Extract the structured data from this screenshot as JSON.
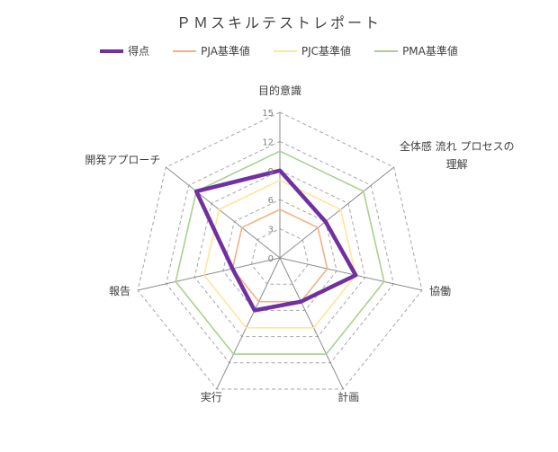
{
  "chart_data": {
    "type": "radar",
    "title": "ＰＭスキルテストレポート",
    "axes": [
      "目的意識",
      "全体感 流れ プロセスの理解",
      "協働",
      "計画",
      "実行",
      "報告",
      "開発アプローチ"
    ],
    "axis_label_lines": [
      [
        "目的意識"
      ],
      [
        "全体感 流れ プロセスの",
        "理解"
      ],
      [
        "協働"
      ],
      [
        "計画"
      ],
      [
        "実行"
      ],
      [
        "報告"
      ],
      [
        "開発アプローチ"
      ]
    ],
    "rmin": 0,
    "rmax": 15,
    "ticks": [
      0,
      3,
      6,
      9,
      12,
      15
    ],
    "grid": true,
    "legend_position": "top",
    "series": [
      {
        "name": "得点",
        "values": [
          9,
          6,
          8,
          5,
          6,
          5,
          11
        ],
        "color": "#7030a0",
        "width": 4.5
      },
      {
        "name": "PJA基準値",
        "values": [
          5,
          5,
          5,
          5,
          5,
          5,
          5
        ],
        "color": "#f4b183",
        "width": 1.6
      },
      {
        "name": "PJC基準値",
        "values": [
          8,
          8,
          8,
          8,
          8,
          8,
          8
        ],
        "color": "#ffe699",
        "width": 1.6
      },
      {
        "name": "PMA基準値",
        "values": [
          11,
          11,
          11,
          11,
          11,
          11,
          11
        ],
        "color": "#a9d18e",
        "width": 1.6
      }
    ]
  }
}
